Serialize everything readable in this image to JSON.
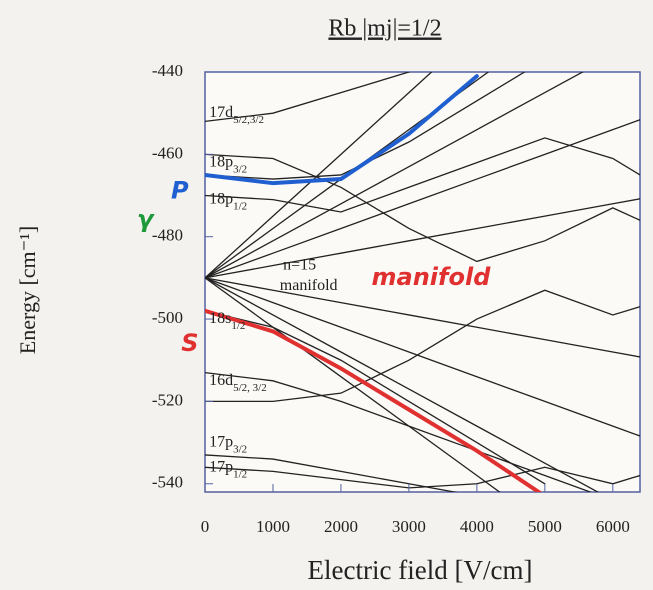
{
  "chart_data": {
    "type": "line",
    "title": "Rb |mj|=1/2",
    "x_label": "Electric field [V/cm]",
    "y_label": "Energy [cm⁻¹]",
    "xlim": [
      0,
      6400
    ],
    "ylim": [
      -542,
      -440
    ],
    "xticks": [
      0,
      1000,
      2000,
      3000,
      4000,
      5000,
      6000
    ],
    "yticks": [
      -540,
      -520,
      -500,
      -480,
      -460,
      -440
    ],
    "x": [
      0,
      1000,
      2000,
      3000,
      4000,
      5000,
      6000,
      6400
    ],
    "series": [
      {
        "color": "#222222",
        "values": [
          -490,
          -475,
          -460,
          -445,
          -430,
          null,
          null,
          null
        ]
      },
      {
        "color": "#222222",
        "values": [
          -490,
          -478,
          -466,
          -454,
          -442,
          -430,
          null,
          null
        ]
      },
      {
        "color": "#222222",
        "values": [
          -490,
          -481,
          -472,
          -463,
          -454,
          -445,
          -436,
          null
        ]
      },
      {
        "color": "#222222",
        "values": [
          -490,
          -484,
          -478,
          -472,
          -466,
          -460,
          -454,
          -451.6
        ]
      },
      {
        "color": "#222222",
        "values": [
          -490,
          -487,
          -484,
          -481,
          -478,
          -475,
          -472,
          -470.8
        ]
      },
      {
        "color": "#222222",
        "values": [
          -490,
          -493,
          -496,
          -499,
          -502,
          -505,
          -508,
          -509.2
        ]
      },
      {
        "color": "#222222",
        "values": [
          -490,
          -496,
          -502,
          -508,
          -514,
          -520,
          -526,
          -528.4
        ]
      },
      {
        "color": "#222222",
        "values": [
          -490,
          -499,
          -508,
          -517,
          -526,
          -535,
          -544,
          null
        ]
      },
      {
        "color": "#222222",
        "values": [
          -490,
          -502,
          -514,
          -526,
          -538,
          -550,
          null,
          null
        ]
      },
      {
        "color": "#222222",
        "values": [
          -452,
          -450,
          -445,
          -440,
          -434,
          null,
          null,
          null
        ]
      },
      {
        "color": "#222222",
        "values": [
          -465,
          -466,
          -465,
          -457,
          -447,
          -437,
          null,
          null
        ]
      },
      {
        "color": "#222222",
        "values": [
          -470,
          -471,
          -474,
          -468,
          -462,
          -456,
          -461,
          -465
        ]
      },
      {
        "color": "#222222",
        "values": [
          -498,
          -502,
          -510,
          -520,
          -530,
          -540,
          null,
          null
        ]
      },
      {
        "color": "#222222",
        "values": [
          -513,
          -515,
          -520,
          -526,
          -532,
          -538,
          -544,
          null
        ]
      },
      {
        "color": "#222222",
        "values": [
          -533,
          -534,
          -537,
          -540,
          -543,
          null,
          null,
          null
        ]
      },
      {
        "color": "#222222",
        "values": [
          -536,
          -537,
          -539,
          -541,
          -540,
          -536,
          -540,
          -538
        ]
      },
      {
        "color": "#222222",
        "values": [
          -460,
          -461,
          -468,
          -478,
          -486,
          -481,
          -473,
          -476
        ]
      },
      {
        "color": "#222222",
        "values": [
          -520,
          -520,
          -518,
          -510,
          -500,
          -493,
          -499,
          -497
        ]
      },
      {
        "color": "#1f5fd0",
        "values": [
          -465,
          -467,
          -466,
          -455,
          -441,
          null,
          null,
          null
        ]
      },
      {
        "color": "#e03030",
        "values": [
          -498,
          -503,
          -512,
          -522,
          -532,
          -543,
          null,
          null
        ]
      }
    ],
    "level_labels": [
      {
        "text": "17d",
        "sub": "5/2,3/2",
        "x": 60,
        "y": -450
      },
      {
        "text": "18p",
        "sub": "3/2",
        "x": 60,
        "y": -462
      },
      {
        "text": "18p",
        "sub": "1/2",
        "x": 60,
        "y": -471
      },
      {
        "text": "n=15",
        "x": 1150,
        "y": -487
      },
      {
        "text": "manifold",
        "x": 1100,
        "y": -492
      },
      {
        "text": "18s",
        "sub": "1/2",
        "x": 60,
        "y": -500
      },
      {
        "text": "16d",
        "sub": "5/2, 3/2",
        "x": 60,
        "y": -515
      },
      {
        "text": "17p",
        "sub": "3/2",
        "x": 60,
        "y": -530
      },
      {
        "text": "17p",
        "sub": "1/2",
        "x": 60,
        "y": -536
      }
    ],
    "annotations": [
      {
        "text": "P",
        "color": "#1f5fd0",
        "x": -500,
        "y": -469
      },
      {
        "text": "γ",
        "color": "#1e9a3a",
        "x": -1000,
        "y": -476
      },
      {
        "text": "S",
        "color": "#e03030",
        "x": -350,
        "y": -506
      },
      {
        "text": "manifold",
        "color": "#e03030",
        "x": 2450,
        "y": -490
      }
    ]
  }
}
